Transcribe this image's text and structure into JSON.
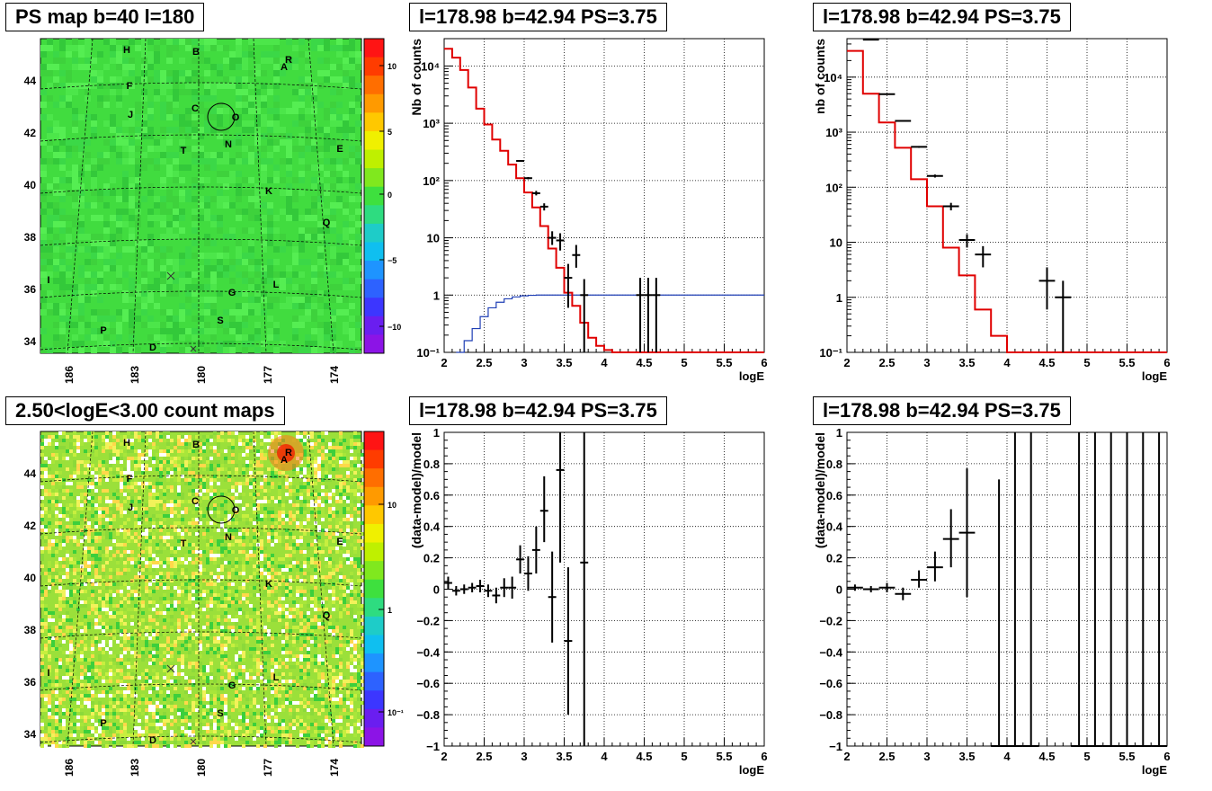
{
  "pads": {
    "map1": {
      "title": "PS map b=40 l=180"
    },
    "map2": {
      "title": "2.50<logE<3.00 count maps"
    },
    "spec1": {
      "title": "l=178.98 b=42.94 PS=3.75"
    },
    "spec2": {
      "title": "l=178.98 b=42.94 PS=3.75"
    },
    "res1": {
      "title": "l=178.98 b=42.94 PS=3.75"
    },
    "res2": {
      "title": "l=178.98 b=42.94 PS=3.75"
    }
  },
  "maps": {
    "lat_ticks": [
      "44",
      "42",
      "40",
      "38",
      "36",
      "34"
    ],
    "lon_ticks": [
      "186",
      "183",
      "180",
      "177",
      "174"
    ],
    "sources": [
      "H",
      "B",
      "A",
      "R",
      "F",
      "C",
      "O",
      "J",
      "N",
      "T",
      "E",
      "K",
      "Q",
      "I",
      "G",
      "L",
      "S",
      "P",
      "D"
    ],
    "map1_palette_labels": [
      "10",
      "5",
      "0",
      "−5",
      "−10"
    ],
    "map2_palette_labels": [
      "10",
      "1",
      "10⁻¹"
    ]
  },
  "chart_data": [
    {
      "type": "line",
      "name": "spec1",
      "title": "l=178.98 b=42.94 PS=3.75",
      "xlabel": "logE",
      "ylabel": "Nb of counts",
      "xlim": [
        2,
        6
      ],
      "ylim": [
        0.1,
        30000
      ],
      "yscale": "log",
      "grid": true,
      "x_ticks": [
        "2",
        "2.5",
        "3",
        "3.5",
        "4",
        "4.5",
        "5",
        "5.5",
        "6"
      ],
      "y_ticks": [
        {
          "v": 0.1,
          "t": "10⁻¹"
        },
        {
          "v": 1,
          "t": "1"
        },
        {
          "v": 10,
          "t": "10"
        },
        {
          "v": 100,
          "t": "10²"
        },
        {
          "v": 1000,
          "t": "10³"
        },
        {
          "v": 10000,
          "t": "10⁴"
        }
      ],
      "model_step": {
        "edges": [
          2.0,
          2.1,
          2.2,
          2.3,
          2.4,
          2.5,
          2.6,
          2.7,
          2.8,
          2.9,
          3.0,
          3.1,
          3.2,
          3.3,
          3.4,
          3.5,
          3.6,
          3.7,
          3.8,
          3.9,
          4.0,
          4.1,
          4.2,
          4.3,
          4.4,
          6.0
        ],
        "values": [
          20000,
          14000,
          8500,
          4200,
          1800,
          950,
          520,
          330,
          190,
          110,
          62,
          34,
          16,
          6.5,
          3.0,
          1.1,
          0.65,
          0.33,
          0.18,
          0.13,
          0.11,
          0.1,
          0.1,
          0.1,
          0.1
        ]
      },
      "ratio_curve": {
        "x": [
          2.15,
          2.25,
          2.35,
          2.45,
          2.55,
          2.65,
          2.75,
          2.85,
          2.95,
          3.05,
          3.15,
          3.3,
          3.5,
          3.7,
          6.0
        ],
        "y": [
          0.1,
          0.16,
          0.26,
          0.42,
          0.6,
          0.75,
          0.86,
          0.93,
          0.97,
          0.99,
          1.0,
          1.0,
          1.0,
          1.0,
          1.0
        ]
      },
      "data_points": [
        {
          "x": 2.95,
          "y": 220,
          "lo": 215,
          "hi": 225
        },
        {
          "x": 3.05,
          "y": 110,
          "lo": 105,
          "hi": 115
        },
        {
          "x": 3.15,
          "y": 60,
          "lo": 55,
          "hi": 66
        },
        {
          "x": 3.25,
          "y": 35,
          "lo": 30,
          "hi": 40
        },
        {
          "x": 3.35,
          "y": 10,
          "lo": 7.5,
          "hi": 13
        },
        {
          "x": 3.45,
          "y": 9,
          "lo": 6,
          "hi": 12
        },
        {
          "x": 3.55,
          "y": 2,
          "lo": 0.6,
          "hi": 3.5
        },
        {
          "x": 3.65,
          "y": 5,
          "lo": 3,
          "hi": 7.5
        },
        {
          "x": 3.75,
          "y": 1,
          "lo": 0.1,
          "hi": 1.9
        },
        {
          "x": 4.45,
          "y": 1,
          "lo": 0.1,
          "hi": 2
        },
        {
          "x": 4.55,
          "y": 1,
          "lo": 0.1,
          "hi": 2
        },
        {
          "x": 4.65,
          "y": 1,
          "lo": 0.1,
          "hi": 2
        }
      ],
      "bin_half_width": 0.05
    },
    {
      "type": "line",
      "name": "spec2",
      "title": "l=178.98 b=42.94 PS=3.75",
      "xlabel": "logE",
      "ylabel": "nb of counts",
      "xlim": [
        2,
        6
      ],
      "ylim": [
        0.1,
        50000
      ],
      "yscale": "log",
      "grid": true,
      "x_ticks": [
        "2",
        "2.5",
        "3",
        "3.5",
        "4",
        "4.5",
        "5",
        "5.5",
        "6"
      ],
      "y_ticks": [
        {
          "v": 0.1,
          "t": "10⁻¹"
        },
        {
          "v": 1,
          "t": "1"
        },
        {
          "v": 10,
          "t": "10"
        },
        {
          "v": 100,
          "t": "10²"
        },
        {
          "v": 1000,
          "t": "10³"
        },
        {
          "v": 10000,
          "t": "10⁴"
        }
      ],
      "model_step": {
        "edges": [
          2.0,
          2.2,
          2.4,
          2.6,
          2.8,
          3.0,
          3.2,
          3.4,
          3.6,
          3.8,
          4.0,
          4.2,
          6.0
        ],
        "values": [
          30000,
          5000,
          1500,
          520,
          140,
          45,
          8,
          2.5,
          0.6,
          0.2,
          0.1,
          0.1
        ]
      },
      "data_points": [
        {
          "x": 2.3,
          "y": 48000,
          "lo": 47000,
          "hi": 49000
        },
        {
          "x": 2.5,
          "y": 4900,
          "lo": 4800,
          "hi": 5000
        },
        {
          "x": 2.7,
          "y": 1600,
          "lo": 1550,
          "hi": 1650
        },
        {
          "x": 2.9,
          "y": 540,
          "lo": 520,
          "hi": 560
        },
        {
          "x": 3.1,
          "y": 160,
          "lo": 150,
          "hi": 170
        },
        {
          "x": 3.3,
          "y": 45,
          "lo": 38,
          "hi": 52
        },
        {
          "x": 3.5,
          "y": 11,
          "lo": 8,
          "hi": 14
        },
        {
          "x": 3.7,
          "y": 6,
          "lo": 3.5,
          "hi": 8.5
        },
        {
          "x": 4.5,
          "y": 2,
          "lo": 0.6,
          "hi": 3.5
        },
        {
          "x": 4.7,
          "y": 1,
          "lo": 0.1,
          "hi": 2
        }
      ],
      "bin_half_width": 0.1
    },
    {
      "type": "scatter",
      "name": "res1",
      "title": "l=178.98 b=42.94 PS=3.75",
      "xlabel": "logE",
      "ylabel": "(data-model)/model",
      "xlim": [
        2,
        6
      ],
      "ylim": [
        -1,
        1
      ],
      "grid": true,
      "x_ticks": [
        "2",
        "2.5",
        "3",
        "3.5",
        "4",
        "4.5",
        "5",
        "5.5",
        "6"
      ],
      "y_ticks": [
        "1",
        "0.8",
        "0.6",
        "0.4",
        "0.2",
        "0",
        "−0.2",
        "−0.4",
        "−0.6",
        "−0.8",
        "−1"
      ],
      "bin_half_width": 0.05,
      "data_points": [
        {
          "x": 2.05,
          "y": 0.04,
          "lo": 0.0,
          "hi": 0.08
        },
        {
          "x": 2.15,
          "y": -0.01,
          "lo": -0.04,
          "hi": 0.02
        },
        {
          "x": 2.25,
          "y": 0.0,
          "lo": -0.03,
          "hi": 0.03
        },
        {
          "x": 2.35,
          "y": 0.01,
          "lo": -0.02,
          "hi": 0.04
        },
        {
          "x": 2.45,
          "y": 0.02,
          "lo": -0.02,
          "hi": 0.06
        },
        {
          "x": 2.55,
          "y": -0.01,
          "lo": -0.05,
          "hi": 0.03
        },
        {
          "x": 2.65,
          "y": -0.04,
          "lo": -0.09,
          "hi": 0.01
        },
        {
          "x": 2.75,
          "y": 0.01,
          "lo": -0.05,
          "hi": 0.07
        },
        {
          "x": 2.85,
          "y": 0.01,
          "lo": -0.06,
          "hi": 0.08
        },
        {
          "x": 2.95,
          "y": 0.19,
          "lo": 0.1,
          "hi": 0.28
        },
        {
          "x": 3.05,
          "y": 0.1,
          "lo": -0.01,
          "hi": 0.21
        },
        {
          "x": 3.15,
          "y": 0.25,
          "lo": 0.1,
          "hi": 0.4
        },
        {
          "x": 3.25,
          "y": 0.5,
          "lo": 0.3,
          "hi": 0.72
        },
        {
          "x": 3.35,
          "y": -0.05,
          "lo": -0.34,
          "hi": 0.24
        },
        {
          "x": 3.45,
          "y": 0.76,
          "lo": 0.17,
          "hi": 1.0
        },
        {
          "x": 3.55,
          "y": -0.33,
          "lo": -0.8,
          "hi": 0.14
        },
        {
          "x": 3.75,
          "y": 0.17,
          "lo": -1.0,
          "hi": 1.0
        }
      ]
    },
    {
      "type": "scatter",
      "name": "res2",
      "title": "l=178.98 b=42.94 PS=3.75",
      "xlabel": "logE",
      "ylabel": "(data-model)/model",
      "xlim": [
        2,
        6
      ],
      "ylim": [
        -1,
        1
      ],
      "grid": true,
      "x_ticks": [
        "2",
        "2.5",
        "3",
        "3.5",
        "4",
        "4.5",
        "5",
        "5.5",
        "6"
      ],
      "y_ticks": [
        "1",
        "0.8",
        "0.6",
        "0.4",
        "0.2",
        "0",
        "−0.2",
        "−0.4",
        "−0.6",
        "−0.8",
        "−1"
      ],
      "bin_half_width": 0.1,
      "data_points": [
        {
          "x": 2.1,
          "y": 0.01,
          "lo": -0.01,
          "hi": 0.03
        },
        {
          "x": 2.3,
          "y": 0.0,
          "lo": -0.02,
          "hi": 0.02
        },
        {
          "x": 2.5,
          "y": 0.01,
          "lo": -0.02,
          "hi": 0.04
        },
        {
          "x": 2.7,
          "y": -0.03,
          "lo": -0.07,
          "hi": 0.01
        },
        {
          "x": 2.9,
          "y": 0.06,
          "lo": 0.01,
          "hi": 0.12
        },
        {
          "x": 3.1,
          "y": 0.14,
          "lo": 0.05,
          "hi": 0.24
        },
        {
          "x": 3.3,
          "y": 0.32,
          "lo": 0.14,
          "hi": 0.51
        },
        {
          "x": 3.5,
          "y": 0.36,
          "lo": -0.05,
          "hi": 0.77
        },
        {
          "x": 3.9,
          "y": -1.0,
          "lo": -1.0,
          "hi": 0.7
        },
        {
          "x": 4.1,
          "y": -1.0,
          "lo": -1.0,
          "hi": 1.0
        },
        {
          "x": 4.3,
          "y": -1.0,
          "lo": -1.0,
          "hi": 1.0
        },
        {
          "x": 4.9,
          "y": -1.0,
          "lo": -1.0,
          "hi": 1.0
        },
        {
          "x": 5.1,
          "y": -1.0,
          "lo": -1.0,
          "hi": 1.0
        },
        {
          "x": 5.3,
          "y": -1.0,
          "lo": -1.0,
          "hi": 1.0
        },
        {
          "x": 5.5,
          "y": -1.0,
          "lo": -1.0,
          "hi": 1.0
        },
        {
          "x": 5.7,
          "y": -1.0,
          "lo": -1.0,
          "hi": 1.0
        },
        {
          "x": 5.9,
          "y": -1.0,
          "lo": -1.0,
          "hi": 1.0
        }
      ]
    }
  ]
}
